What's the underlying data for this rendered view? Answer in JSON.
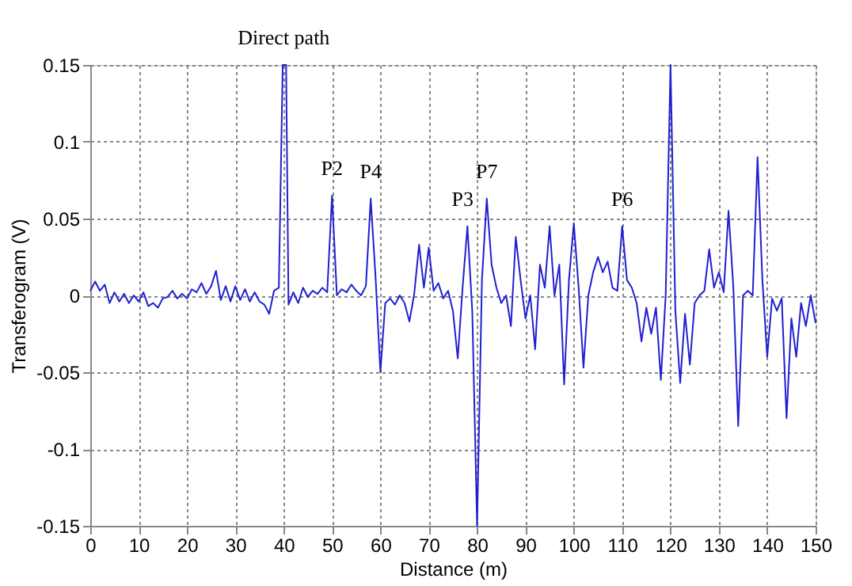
{
  "chart_data": {
    "type": "line",
    "xlabel": "Distance (m)",
    "ylabel": "Transferogram (V)",
    "xlim": [
      0,
      150
    ],
    "ylim": [
      -0.15,
      0.15
    ],
    "xticks": [
      0,
      10,
      20,
      30,
      40,
      50,
      60,
      70,
      80,
      90,
      100,
      110,
      120,
      130,
      140,
      150
    ],
    "yticks": [
      -0.15,
      -0.1,
      -0.05,
      0,
      0.05,
      0.1,
      0.15
    ],
    "grid": true,
    "line_style": "solid",
    "marker": "none",
    "series": [
      {
        "color": "#2020d0",
        "x": [
          0,
          1,
          2,
          3,
          4,
          5,
          6,
          7,
          8,
          9,
          10,
          11,
          12,
          13,
          14,
          15,
          16,
          17,
          18,
          19,
          20,
          21,
          22,
          23,
          24,
          25,
          26,
          27,
          28,
          29,
          30,
          31,
          32,
          33,
          34,
          35,
          36,
          37,
          38,
          39,
          39.8,
          40.5,
          41,
          42,
          43,
          44,
          45,
          46,
          47,
          48,
          49,
          50,
          51,
          52,
          53,
          54,
          55,
          56,
          57,
          58,
          59,
          60,
          61,
          62,
          63,
          64,
          65,
          66,
          67,
          68,
          69,
          70,
          71,
          72,
          73,
          74,
          75,
          76,
          77,
          78,
          79,
          80,
          81,
          82,
          83,
          84,
          85,
          86,
          87,
          88,
          89,
          90,
          91,
          92,
          93,
          94,
          95,
          96,
          97,
          98,
          99,
          100,
          101,
          102,
          103,
          104,
          105,
          106,
          107,
          108,
          109,
          110,
          111,
          112,
          113,
          114,
          115,
          116,
          117,
          118,
          119,
          120,
          121,
          122,
          123,
          124,
          125,
          126,
          127,
          128,
          129,
          130,
          131,
          132,
          133,
          134,
          135,
          136,
          137,
          138,
          139,
          140,
          141,
          142,
          143,
          144,
          145,
          146,
          147,
          148,
          149,
          150
        ],
        "values": [
          0.003,
          0.009,
          0.003,
          0.007,
          -0.005,
          0.002,
          -0.004,
          0.001,
          -0.005,
          0,
          -0.004,
          0.002,
          -0.007,
          -0.005,
          -0.008,
          -0.002,
          -0.001,
          0.003,
          -0.002,
          0.001,
          -0.002,
          0.004,
          0.002,
          0.008,
          0.001,
          0.006,
          0.016,
          -0.003,
          0.006,
          -0.004,
          0.006,
          -0.003,
          0.004,
          -0.004,
          0.002,
          -0.004,
          -0.006,
          -0.012,
          0.003,
          0.005,
          0.15,
          0.15,
          -0.006,
          0.002,
          -0.005,
          0.005,
          -0.001,
          0.003,
          0.001,
          0.005,
          0.002,
          0.065,
          0,
          0.004,
          0.002,
          0.007,
          0.003,
          0,
          0.006,
          0.063,
          0.012,
          -0.05,
          -0.005,
          -0.002,
          -0.006,
          0,
          -0.005,
          -0.017,
          0.001,
          0.033,
          0.005,
          0.031,
          0.003,
          0.008,
          -0.002,
          0.003,
          -0.01,
          -0.041,
          0.005,
          0.045,
          -0.01,
          -0.15,
          0.01,
          0.063,
          0.02,
          0.005,
          -0.005,
          0,
          -0.02,
          0.038,
          0.01,
          -0.015,
          0,
          -0.035,
          0.02,
          0.005,
          0.045,
          0,
          0.02,
          -0.058,
          0.01,
          0.047,
          0.005,
          -0.047,
          0,
          0.015,
          0.025,
          0.015,
          0.022,
          0.005,
          0.003,
          0.045,
          0.01,
          0.005,
          -0.005,
          -0.03,
          -0.008,
          -0.025,
          -0.008,
          -0.055,
          0,
          0.15,
          -0.01,
          -0.057,
          -0.012,
          -0.045,
          -0.005,
          0,
          0.003,
          0.03,
          0.005,
          0.015,
          0.002,
          0.055,
          0.005,
          -0.085,
          0,
          0.003,
          0,
          0.09,
          0.01,
          -0.04,
          -0.002,
          -0.01,
          -0.002,
          -0.08,
          -0.015,
          -0.04,
          -0.005,
          -0.02,
          0,
          -0.018
        ]
      }
    ],
    "annotations": [
      {
        "text": "Direct path",
        "x": 40,
        "y": 0.15
      },
      {
        "text": "P2",
        "x": 50,
        "y": 0.065
      },
      {
        "text": "P4",
        "x": 58,
        "y": 0.063
      },
      {
        "text": "P3",
        "x": 77,
        "y": 0.045
      },
      {
        "text": "P7",
        "x": 82,
        "y": 0.063
      },
      {
        "text": "P6",
        "x": 110,
        "y": 0.045
      }
    ]
  }
}
